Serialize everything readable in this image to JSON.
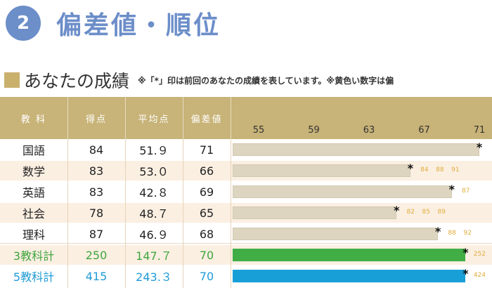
{
  "section": {
    "number": "2",
    "title": "偏差値・順位"
  },
  "subheader": {
    "title": "あなたの成績",
    "note": "※「*」印は前回のあなたの成績を表しています。※黄色い数字は偏"
  },
  "table": {
    "columns": [
      "教 科",
      "得点",
      "平均点",
      "偏差値"
    ],
    "ticks": [
      "55",
      "59",
      "63",
      "67",
      "71"
    ],
    "rows": [
      {
        "subject": "国語",
        "score": "84",
        "avg": "51.９",
        "dev": "71",
        "dev_value": 71,
        "prev_dev": 71,
        "bar": "default",
        "text": "default",
        "yellow": []
      },
      {
        "subject": "数学",
        "score": "83",
        "avg": "53.０",
        "dev": "66",
        "dev_value": 66,
        "prev_dev": 66,
        "bar": "default",
        "text": "default",
        "yellow": [
          "84",
          "88",
          "91"
        ]
      },
      {
        "subject": "英語",
        "score": "83",
        "avg": "42.８",
        "dev": "69",
        "dev_value": 69,
        "prev_dev": 69,
        "bar": "default",
        "text": "default",
        "yellow": [
          "87"
        ]
      },
      {
        "subject": "社会",
        "score": "78",
        "avg": "48.７",
        "dev": "65",
        "dev_value": 65,
        "prev_dev": 65,
        "bar": "default",
        "text": "default",
        "yellow": [
          "82",
          "85",
          "89"
        ]
      },
      {
        "subject": "理科",
        "score": "87",
        "avg": "46.９",
        "dev": "68",
        "dev_value": 68,
        "prev_dev": 68,
        "bar": "default",
        "text": "default",
        "yellow": [
          "88",
          "92"
        ]
      },
      {
        "subject": "3教科計",
        "score": "250",
        "avg": "147.７",
        "dev": "70",
        "dev_value": 70,
        "prev_dev": 70,
        "bar": "green",
        "text": "green",
        "yellow": [
          "252"
        ]
      },
      {
        "subject": "5教科計",
        "score": "415",
        "avg": "243.３",
        "dev": "70",
        "dev_value": 70,
        "prev_dev": 70,
        "bar": "blue",
        "text": "blue",
        "yellow": [
          "424"
        ]
      }
    ]
  },
  "colors": {
    "accent": "#6c8ec9",
    "header_bg": "#c8b378",
    "bar_default": "#ddd5bf",
    "bar_green": "#41ad45",
    "bar_blue": "#199fd8",
    "text_green": "#3ea53d",
    "text_blue": "#1f9bd6",
    "yellow_num": "#e0ad3c"
  }
}
